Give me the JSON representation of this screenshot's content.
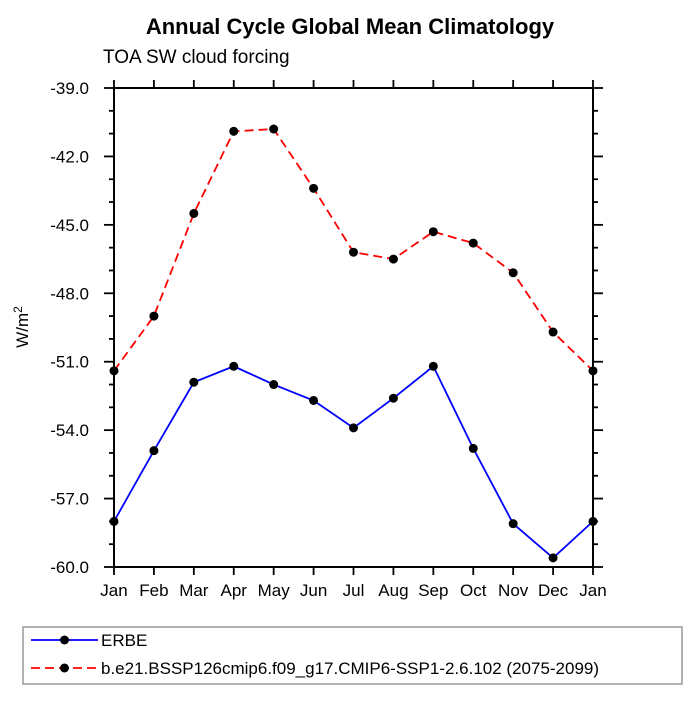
{
  "chart_data": {
    "type": "line",
    "title": "Annual Cycle Global Mean Climatology",
    "subtitle": "TOA SW cloud forcing",
    "ylabel": "W/m²",
    "ylabel_parts": {
      "base": "W/m",
      "exp": "2"
    },
    "categories": [
      "Jan",
      "Feb",
      "Mar",
      "Apr",
      "May",
      "Jun",
      "Jul",
      "Aug",
      "Sep",
      "Oct",
      "Nov",
      "Dec",
      "Jan"
    ],
    "ylim": [
      -39.0,
      -60.0
    ],
    "ytick_major_step": 3.0,
    "ytick_minor_step": 1.0,
    "ytick_labels": [
      "-39.0",
      "-42.0",
      "-45.0",
      "-48.0",
      "-51.0",
      "-54.0",
      "-57.0",
      "-60.0"
    ],
    "grid": false,
    "legend_position": "bottom",
    "series": [
      {
        "name": "ERBE",
        "color": "#0000ff",
        "line_style": "solid",
        "marker": "circle",
        "marker_color": "#000000",
        "values": [
          -58.0,
          -54.9,
          -51.9,
          -51.2,
          -52.0,
          -52.7,
          -53.9,
          -52.6,
          -51.2,
          -54.8,
          -58.1,
          -59.6,
          -58.0
        ]
      },
      {
        "name": "b.e21.BSSP126cmip6.f09_g17.CMIP6-SSP1-2.6.102 (2075-2099)",
        "color": "#ff0000",
        "line_style": "dashed",
        "marker": "circle",
        "marker_color": "#000000",
        "values": [
          -51.4,
          -49.0,
          -44.5,
          -40.9,
          -40.8,
          -43.4,
          -46.2,
          -46.5,
          -45.3,
          -45.8,
          -47.1,
          -49.7,
          -51.4
        ]
      }
    ]
  },
  "colors": {
    "axis": "#000000",
    "background": "#ffffff",
    "legend_border": "#999999"
  }
}
